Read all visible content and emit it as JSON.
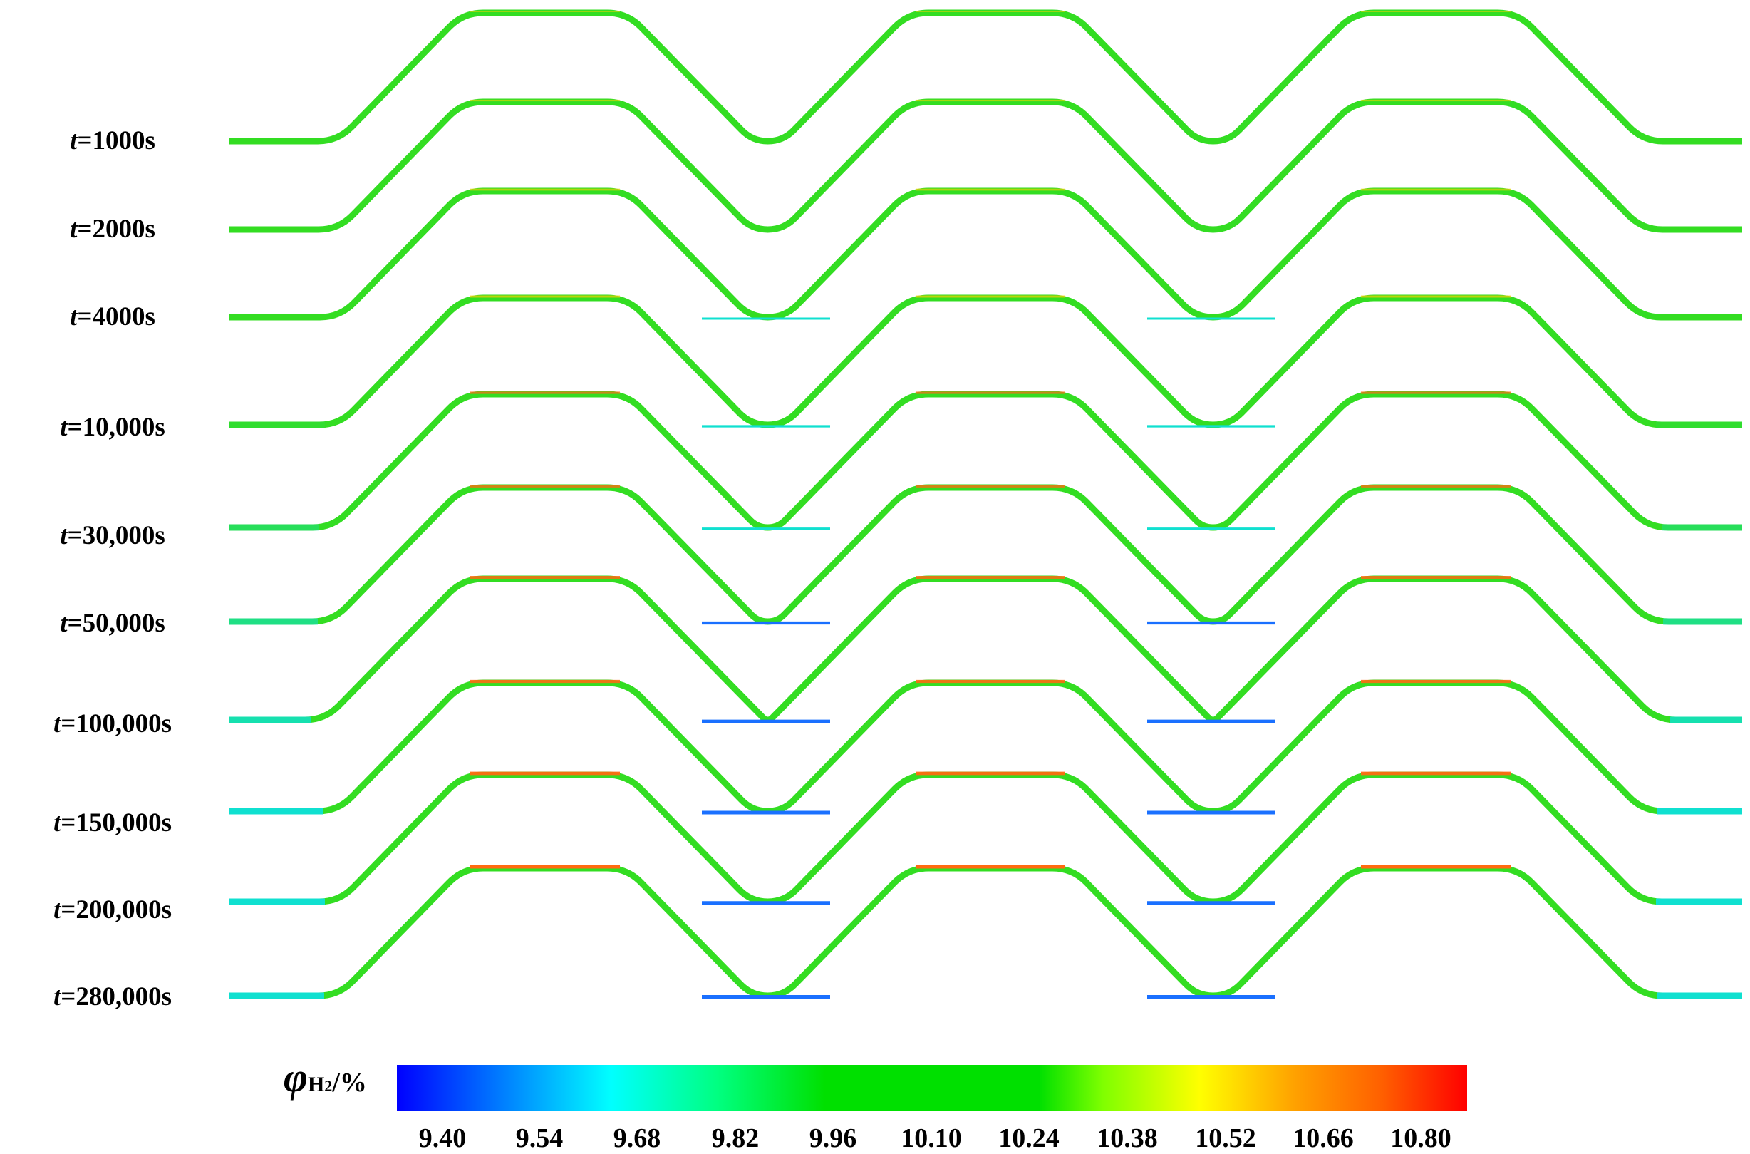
{
  "rows": [
    {
      "prefix": "t",
      "value": "=1000s"
    },
    {
      "prefix": "t",
      "value": "=2000s"
    },
    {
      "prefix": "t",
      "value": "=4000s"
    },
    {
      "prefix": "t",
      "value": "=10,000s"
    },
    {
      "prefix": "t",
      "value": "=30,000s"
    },
    {
      "prefix": "t",
      "value": "=50,000s"
    },
    {
      "prefix": "t",
      "value": "=100,000s"
    },
    {
      "prefix": "t",
      "value": "=150,000s"
    },
    {
      "prefix": "t",
      "value": "=200,000s"
    },
    {
      "prefix": "t",
      "value": "=280,000s"
    }
  ],
  "legend": {
    "symbol": "φ",
    "subscript": "H",
    "subscript2": "2",
    "unit": "/%",
    "ticks": [
      "9.40",
      "9.54",
      "9.68",
      "9.82",
      "9.96",
      "10.10",
      "10.24",
      "10.38",
      "10.52",
      "10.66",
      "10.80"
    ]
  },
  "colors": {
    "scale": [
      "#0000ff",
      "#0080ff",
      "#00ffff",
      "#00ff80",
      "#00e000",
      "#00e000",
      "#80ff00",
      "#ffff00",
      "#ffa000",
      "#ff6000",
      "#ff0000"
    ],
    "pipe_base": "#33dd22",
    "crest_high": "#ff6a10",
    "trough_low": "#1a70ff",
    "flat_low": "#10e0d0"
  }
}
